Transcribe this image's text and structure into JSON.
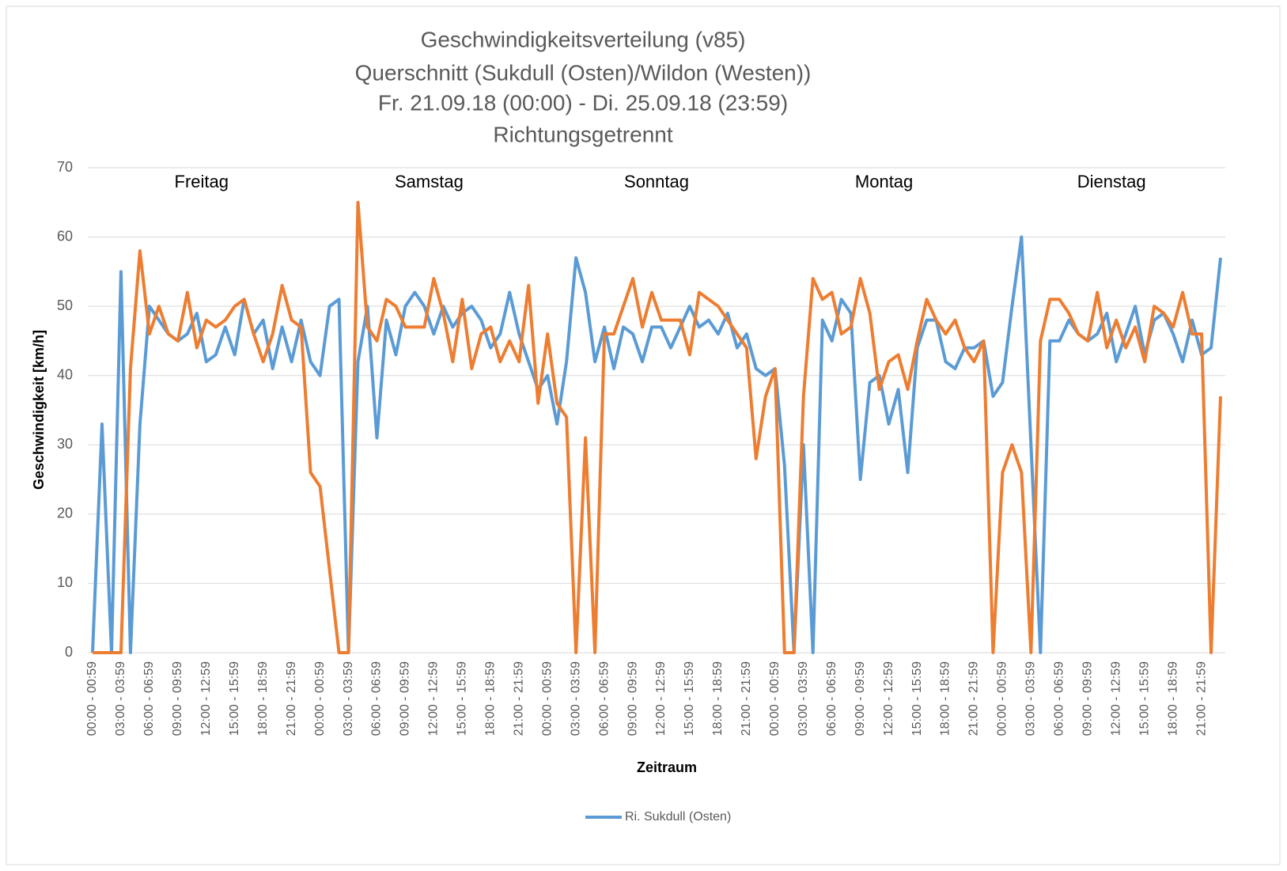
{
  "chart_data": {
    "type": "line",
    "title": [
      "Geschwindigkeitsverteilung (v85)",
      "Querschnitt (Sukdull (Osten)/Wildon (Westen))",
      "Fr. 21.09.18 (00:00) - Di. 25.09.18 (23:59)",
      "Richtungsgetrennt"
    ],
    "xlabel": "Zeitraum",
    "ylabel": "Geschwindigkeit [km/h]",
    "annotations": [
      "Freitag",
      "Samstag",
      "Sonntag",
      "Montag",
      "Dienstag"
    ],
    "categories": [
      "00:00 - 00:59",
      null,
      null,
      "03:00 - 03:59",
      null,
      null,
      "06:00 - 06:59",
      null,
      null,
      "09:00 - 09:59",
      null,
      null,
      "12:00 - 12:59",
      null,
      null,
      "15:00 - 15:59",
      null,
      null,
      "18:00 - 18:59",
      null,
      null,
      "21:00 - 21:59",
      null,
      null,
      "00:00 - 00:59",
      null,
      null,
      "03:00 - 03:59",
      null,
      null,
      "06:00 - 06:59",
      null,
      null,
      "09:00 - 09:59",
      null,
      null,
      "12:00 - 12:59",
      null,
      null,
      "15:00 - 15:59",
      null,
      null,
      "18:00 - 18:59",
      null,
      null,
      "21:00 - 21:59",
      null,
      null,
      "00:00 - 00:59",
      null,
      null,
      "03:00 - 03:59",
      null,
      null,
      "06:00 - 06:59",
      null,
      null,
      "09:00 - 09:59",
      null,
      null,
      "12:00 - 12:59",
      null,
      null,
      "15:00 - 15:59",
      null,
      null,
      "18:00 - 18:59",
      null,
      null,
      "21:00 - 21:59",
      null,
      null,
      "00:00 - 00:59",
      null,
      null,
      "03:00 - 03:59",
      null,
      null,
      "06:00 - 06:59",
      null,
      null,
      "09:00 - 09:59",
      null,
      null,
      "12:00 - 12:59",
      null,
      null,
      "15:00 - 15:59",
      null,
      null,
      "18:00 - 18:59",
      null,
      null,
      "21:00 - 21:59",
      null,
      null,
      "00:00 - 00:59",
      null,
      null,
      "03:00 - 03:59",
      null,
      null,
      "06:00 - 06:59",
      null,
      null,
      "09:00 - 09:59",
      null,
      null,
      "12:00 - 12:59",
      null,
      null,
      "15:00 - 15:59",
      null,
      null,
      "18:00 - 18:59",
      null,
      null,
      "21:00 - 21:59",
      null,
      null
    ],
    "series": [
      {
        "name": "Ri. Sukdull (Osten)",
        "color": "#5b9bd5",
        "values": [
          0,
          33,
          0,
          55,
          0,
          33,
          50,
          48,
          46,
          45,
          46,
          49,
          42,
          43,
          47,
          43,
          51,
          46,
          48,
          41,
          47,
          42,
          48,
          42,
          40,
          50,
          51,
          0,
          42,
          50,
          31,
          48,
          43,
          50,
          52,
          50,
          46,
          50,
          47,
          49,
          50,
          48,
          44,
          46,
          52,
          46,
          42,
          38,
          40,
          33,
          42,
          57,
          52,
          42,
          47,
          41,
          47,
          46,
          42,
          47,
          47,
          44,
          47,
          50,
          47,
          48,
          46,
          49,
          44,
          46,
          41,
          40,
          41,
          27,
          0,
          30,
          0,
          48,
          45,
          51,
          49,
          25,
          39,
          40,
          33,
          38,
          26,
          44,
          48,
          48,
          42,
          41,
          44,
          44,
          45,
          37,
          39,
          50,
          60,
          30,
          0,
          45,
          45,
          48,
          46,
          45,
          46,
          49,
          42,
          46,
          50,
          43,
          48,
          49,
          46,
          42,
          48,
          43,
          44,
          57
        ]
      },
      {
        "color": "#ed7d31",
        "values": [
          0,
          0,
          0,
          0,
          41,
          58,
          46,
          50,
          46,
          45,
          52,
          44,
          48,
          47,
          48,
          50,
          51,
          46,
          42,
          46,
          53,
          48,
          47,
          26,
          24,
          12,
          0,
          0,
          65,
          47,
          45,
          51,
          50,
          47,
          47,
          47,
          54,
          49,
          42,
          51,
          41,
          46,
          47,
          42,
          45,
          42,
          53,
          36,
          46,
          36,
          34,
          0,
          31,
          0,
          46,
          46,
          50,
          54,
          47,
          52,
          48,
          48,
          48,
          43,
          52,
          51,
          50,
          48,
          46,
          44,
          28,
          37,
          41,
          0,
          0,
          37,
          54,
          51,
          52,
          46,
          47,
          54,
          49,
          38,
          42,
          43,
          38,
          45,
          51,
          48,
          46,
          48,
          44,
          42,
          45,
          0,
          26,
          30,
          26,
          0,
          45,
          51,
          51,
          49,
          46,
          45,
          52,
          44,
          48,
          44,
          47,
          42,
          50,
          49,
          47,
          52,
          46,
          46,
          0,
          37
        ]
      }
    ],
    "ylim": [
      0,
      70
    ],
    "yticks": [
      0,
      10,
      20,
      30,
      40,
      50,
      60,
      70
    ],
    "grid": true,
    "legend": "bottom"
  }
}
